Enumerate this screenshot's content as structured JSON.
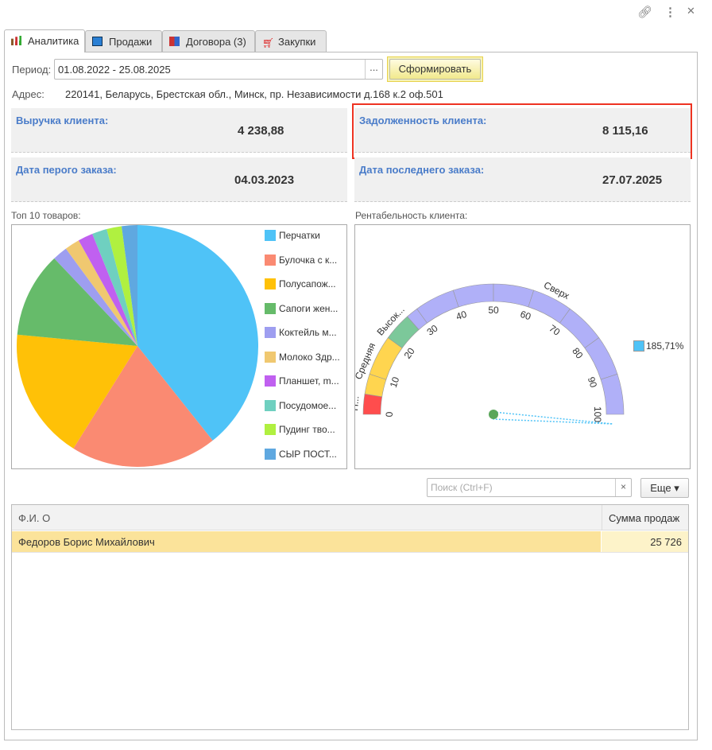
{
  "window": {
    "link_icon": "link-icon",
    "more_icon": "more-vertical-icon",
    "close_icon": "close-icon"
  },
  "tabs": [
    {
      "label": "Аналитика",
      "icon": "chart-icon"
    },
    {
      "label": "Продажи",
      "icon": "document-icon"
    },
    {
      "label": "Договора (3)",
      "icon": "books-icon"
    },
    {
      "label": "Закупки",
      "icon": "cart-icon"
    }
  ],
  "period": {
    "label": "Период:",
    "value": "01.08.2022 - 25.08.2025",
    "select_button": "...",
    "form_button": "Сформировать"
  },
  "address": {
    "label": "Адрес:",
    "value": "220141, Беларусь, Брестская обл., Минск, пр. Независимости д.168 к.2 оф.501"
  },
  "cards": {
    "revenue": {
      "label": "Выручка клиента:",
      "value": "4 238,88"
    },
    "debt": {
      "label": "Задолженность клиента:",
      "value": "8 115,16"
    },
    "first_order": {
      "label": "Дата перого заказа:",
      "value": "04.03.2023"
    },
    "last_order": {
      "label": "Дата последнего заказа:",
      "value": "27.07.2025"
    }
  },
  "top10": {
    "title": "Топ 10 товаров:"
  },
  "profit": {
    "title": "Рентабельность клиента:"
  },
  "chart_data": [
    {
      "type": "pie",
      "categories": [
        "Перчатки",
        "Булочка с к...",
        "Полусапож...",
        "Сапоги жен...",
        "Коктейль м...",
        "Молоко Здр...",
        "Планшет, m...",
        "Посудомое...",
        "Пудинг тво...",
        "СЫР ПОСТ..."
      ],
      "values": [
        39.3,
        19.6,
        17.6,
        11.4,
        2,
        2,
        2,
        2,
        2,
        2.1
      ],
      "colors": [
        "#4fc3f7",
        "#fa8a72",
        "#ffc107",
        "#66bb6a",
        "#9e9ef0",
        "#f0c870",
        "#c060f0",
        "#6fd0c0",
        "#b0f040",
        "#5fa8e0"
      ],
      "legend": "right"
    },
    {
      "type": "gauge",
      "min": 0,
      "max": 100,
      "ticks": [
        "0",
        "10",
        "20",
        "30",
        "40",
        "50",
        "60",
        "70",
        "80",
        "90",
        "100"
      ],
      "bands": [
        {
          "name": "Н...",
          "from": 0,
          "to": 5,
          "color": "#ff4d4d"
        },
        {
          "name": "Средняя",
          "from": 5,
          "to": 20,
          "color": "#ffd54f"
        },
        {
          "name": "Высок...",
          "from": 20,
          "to": 27,
          "color": "#7cc89a"
        },
        {
          "name": "Сверх",
          "from": 27,
          "to": 100,
          "color": "#b0b0f8"
        }
      ],
      "value": 185.71,
      "value_label": "185,71%",
      "needle_color": "#4fc3f7"
    }
  ],
  "table": {
    "search_placeholder": "Поиск (Ctrl+F)",
    "clear": "×",
    "more": "Еще ▾",
    "columns": [
      "Ф.И. О",
      "Сумма продаж"
    ],
    "rows": [
      [
        "Федоров Борис Михайлович",
        "25 726"
      ]
    ]
  }
}
